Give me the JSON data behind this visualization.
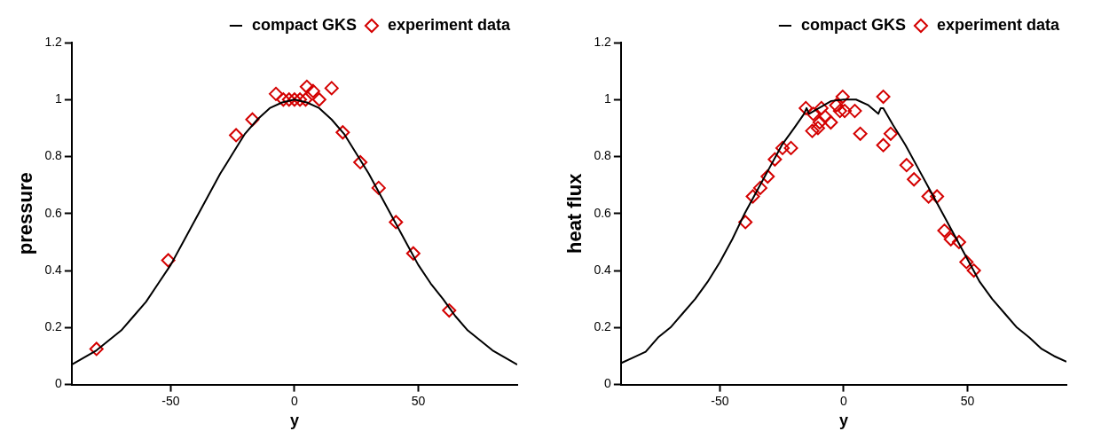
{
  "chart_data": [
    {
      "type": "line",
      "xlabel": "y",
      "ylabel": "pressure",
      "xlim": [
        -90,
        90
      ],
      "xticks": [
        -50,
        0,
        50
      ],
      "ylim": [
        0,
        1.2
      ],
      "yticks": [
        0,
        0.2,
        0.4,
        0.6,
        0.8,
        1,
        1.2
      ],
      "grid": false,
      "legend": "top right",
      "series": [
        {
          "name": "compact GKS",
          "type": "line",
          "color": "#000000",
          "marker": "none",
          "line_style": "solid",
          "x": [
            -90,
            -85,
            -80,
            -75,
            -70,
            -65,
            -60,
            -55,
            -50,
            -45,
            -40,
            -35,
            -30,
            -25,
            -20,
            -15,
            -10,
            -5,
            0,
            5,
            10,
            15,
            20,
            25,
            30,
            35,
            40,
            45,
            50,
            55,
            60,
            65,
            70,
            75,
            80,
            85,
            90
          ],
          "values": [
            0.07,
            0.095,
            0.12,
            0.155,
            0.19,
            0.24,
            0.29,
            0.355,
            0.42,
            0.5,
            0.58,
            0.66,
            0.74,
            0.81,
            0.88,
            0.93,
            0.97,
            0.99,
            1.0,
            0.99,
            0.97,
            0.93,
            0.88,
            0.81,
            0.74,
            0.66,
            0.58,
            0.5,
            0.42,
            0.355,
            0.3,
            0.24,
            0.19,
            0.155,
            0.12,
            0.095,
            0.07
          ]
        },
        {
          "name": "experiment data",
          "type": "scatter",
          "color": "#d40000",
          "marker": "diamond",
          "x": [
            -80,
            -51,
            -23.6,
            -17,
            -7.5,
            -4.5,
            -2.2,
            0,
            2.2,
            4.5,
            5,
            7.5,
            10,
            15,
            19.5,
            26.6,
            34,
            41,
            48,
            62.5
          ],
          "values": [
            0.125,
            0.436,
            0.875,
            0.93,
            1.02,
            1.0,
            1.0,
            1.0,
            1.0,
            1.0,
            1.045,
            1.03,
            1.0,
            1.04,
            0.885,
            0.78,
            0.69,
            0.57,
            0.46,
            0.26
          ]
        }
      ]
    },
    {
      "type": "line",
      "xlabel": "y",
      "ylabel": "heat flux",
      "xlim": [
        -90,
        90
      ],
      "xticks": [
        -50,
        0,
        50
      ],
      "ylim": [
        0,
        1.2
      ],
      "yticks": [
        0,
        0.2,
        0.4,
        0.6,
        0.8,
        1,
        1.2
      ],
      "grid": false,
      "legend": "top right",
      "series": [
        {
          "name": "compact GKS",
          "type": "line",
          "color": "#000000",
          "marker": "none",
          "line_style": "solid",
          "x": [
            -90,
            -85,
            -80,
            -75,
            -70,
            -65,
            -60,
            -55,
            -50,
            -45,
            -40,
            -35,
            -30,
            -25,
            -20,
            -16,
            -15,
            -14,
            -10,
            -5,
            0,
            5,
            10,
            14,
            15,
            16,
            20,
            25,
            30,
            35,
            40,
            45,
            50,
            55,
            60,
            65,
            70,
            75,
            80,
            85,
            90
          ],
          "values": [
            0.075,
            0.095,
            0.115,
            0.165,
            0.2,
            0.25,
            0.3,
            0.36,
            0.43,
            0.51,
            0.6,
            0.68,
            0.76,
            0.84,
            0.9,
            0.95,
            0.97,
            0.95,
            0.97,
            0.995,
            1.0,
            1.0,
            0.98,
            0.95,
            0.97,
            0.97,
            0.91,
            0.84,
            0.76,
            0.68,
            0.6,
            0.52,
            0.44,
            0.36,
            0.3,
            0.25,
            0.2,
            0.165,
            0.125,
            0.1,
            0.08
          ]
        },
        {
          "name": "experiment data",
          "type": "scatter",
          "color": "#d40000",
          "marker": "diamond",
          "x": [
            -39.7,
            -36.7,
            -33.7,
            -30.7,
            -27.8,
            -24.7,
            -21.3,
            -15.3,
            -12.7,
            -12.3,
            -10.4,
            -9.7,
            -9,
            -7.5,
            -5.2,
            -3,
            -1.5,
            -0.4,
            0.4,
            4.5,
            6.7,
            16,
            16,
            19,
            25.4,
            28.4,
            34.3,
            37.7,
            40.7,
            43.3,
            46.6,
            49.6,
            52.6
          ],
          "values": [
            0.57,
            0.66,
            0.69,
            0.73,
            0.79,
            0.83,
            0.83,
            0.97,
            0.89,
            0.95,
            0.9,
            0.92,
            0.97,
            0.94,
            0.92,
            0.98,
            0.96,
            1.01,
            0.96,
            0.96,
            0.88,
            1.01,
            0.84,
            0.88,
            0.77,
            0.72,
            0.66,
            0.66,
            0.54,
            0.51,
            0.5,
            0.43,
            0.4
          ]
        }
      ]
    }
  ]
}
